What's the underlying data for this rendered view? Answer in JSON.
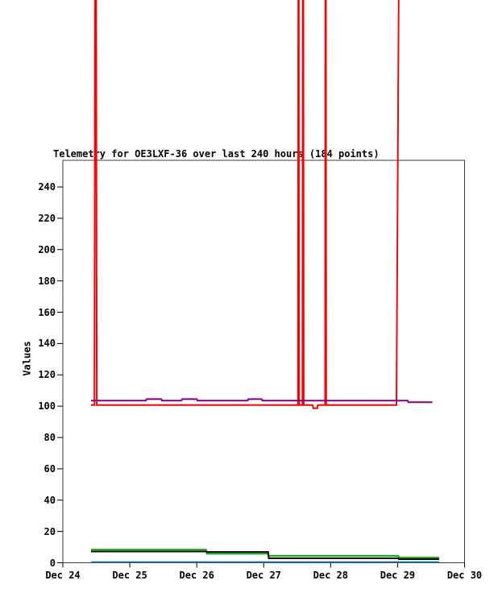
{
  "chart": {
    "title": "Telemetry for OE3LXF-36 over last 240 hours (184 points)",
    "ylabel": "Values"
  },
  "chart_data": {
    "type": "line",
    "title": "Telemetry for OE3LXF-36 over last 240 hours (184 points)",
    "xlabel": "",
    "ylabel": "Values",
    "ylim": [
      0,
      257
    ],
    "xlim_days": [
      0,
      6
    ],
    "grid": false,
    "legend": "none",
    "x_ticks": [
      "Dec 24",
      "Dec 25",
      "Dec 26",
      "Dec 27",
      "Dec 28",
      "Dec 29",
      "Dec 30"
    ],
    "y_ticks": [
      0,
      20,
      40,
      60,
      80,
      100,
      120,
      140,
      160,
      180,
      200,
      220,
      240
    ],
    "note": "x = days after Dec 24; red channel has off-scale spikes (peak value far above plot top, lines drawn unclipped through the title area)",
    "series": [
      {
        "name": "channel-red",
        "color": "#ff0000",
        "baseline_value": 100.7,
        "points": [
          [
            0.421,
            100.7
          ],
          [
            0.472,
            100.7
          ],
          [
            0.489,
            620
          ],
          [
            0.507,
            100.7
          ],
          [
            3.512,
            100.7
          ],
          [
            3.52,
            620
          ],
          [
            3.528,
            100.7
          ],
          [
            3.578,
            100.7
          ],
          [
            3.588,
            620
          ],
          [
            3.598,
            100.7
          ],
          [
            3.73,
            100.7
          ],
          [
            3.74,
            98.7
          ],
          [
            3.8,
            98.7
          ],
          [
            3.81,
            100.7
          ],
          [
            3.918,
            100.7
          ],
          [
            3.926,
            620
          ],
          [
            3.934,
            100.7
          ],
          [
            4.983,
            100.7
          ],
          [
            5.06,
            700
          ]
        ]
      },
      {
        "name": "channel-purple",
        "color": "#800080",
        "points": [
          [
            0.421,
            103.5
          ],
          [
            1.24,
            103.5
          ],
          [
            1.25,
            104.5
          ],
          [
            1.47,
            104.5
          ],
          [
            1.48,
            103.5
          ],
          [
            1.77,
            103.5
          ],
          [
            1.78,
            104.5
          ],
          [
            2.0,
            104.5
          ],
          [
            2.01,
            103.5
          ],
          [
            2.76,
            103.5
          ],
          [
            2.77,
            104.5
          ],
          [
            2.97,
            104.5
          ],
          [
            2.98,
            103.5
          ],
          [
            5.15,
            103.5
          ],
          [
            5.16,
            102.5
          ],
          [
            5.52,
            102.5
          ]
        ]
      },
      {
        "name": "channel-green",
        "color": "#00b000",
        "points": [
          [
            0.421,
            8.4
          ],
          [
            2.14,
            8.4
          ],
          [
            2.15,
            5.8
          ],
          [
            3.065,
            5.8
          ],
          [
            3.075,
            4.4
          ],
          [
            5.01,
            4.4
          ],
          [
            5.02,
            3.3
          ],
          [
            5.62,
            3.3
          ]
        ]
      },
      {
        "name": "channel-black",
        "color": "#000000",
        "points": [
          [
            0.421,
            7.2
          ],
          [
            2.14,
            7.2
          ],
          [
            2.15,
            6.9
          ],
          [
            3.065,
            6.9
          ],
          [
            3.075,
            2.9
          ],
          [
            5.01,
            2.9
          ],
          [
            5.02,
            2.3
          ],
          [
            5.62,
            2.3
          ]
        ]
      },
      {
        "name": "channel-blue",
        "color": "#1565c0",
        "points": [
          [
            0.421,
            0.4
          ],
          [
            5.62,
            0.4
          ]
        ]
      }
    ]
  },
  "layout_colors": {
    "plot_border": "#3c3c3c",
    "background": "#ffffff",
    "text": "#000000"
  }
}
